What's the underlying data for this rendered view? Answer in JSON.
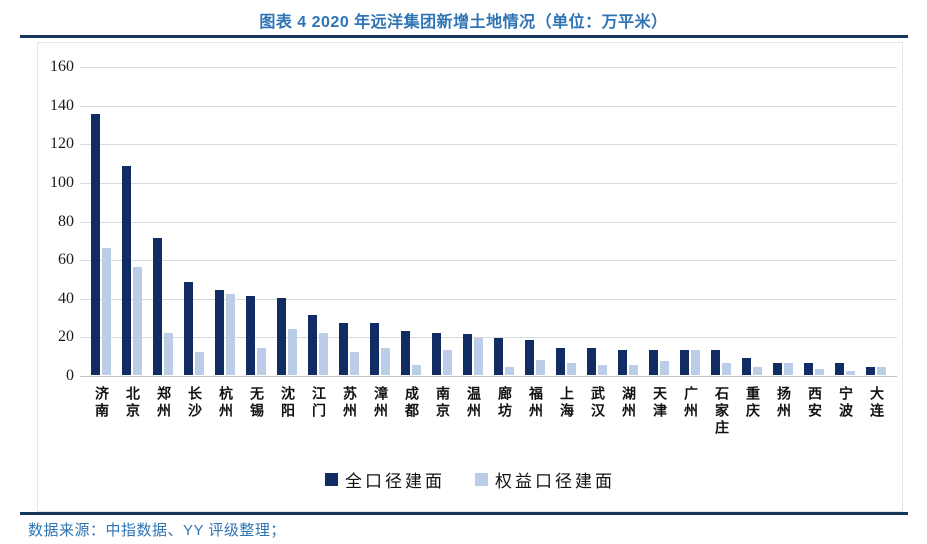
{
  "header": {
    "title": "图表 4 2020 年远洋集团新增土地情况（单位：万平米）"
  },
  "footer": {
    "source": "数据来源：中指数据、YY 评级整理；"
  },
  "colors": {
    "title_blue": "#2E74B5",
    "rule_navy": "#17365D",
    "bar_dark": "#102C63",
    "bar_light": "#BCCDE8",
    "gridline": "#D9D9D9"
  },
  "chart_data": {
    "type": "bar",
    "title": "图表 4 2020 年远洋集团新增土地情况（单位：万平米）",
    "xlabel": "",
    "ylabel": "",
    "ylim": [
      0,
      160
    ],
    "yticks": [
      0,
      20,
      40,
      60,
      80,
      100,
      120,
      140,
      160
    ],
    "grid": true,
    "legend_position": "bottom",
    "categories": [
      "济南",
      "北京",
      "郑州",
      "长沙",
      "杭州",
      "无锡",
      "沈阳",
      "江门",
      "苏州",
      "漳州",
      "成都",
      "南京",
      "温州",
      "廊坊",
      "福州",
      "上海",
      "武汉",
      "湖州",
      "天津",
      "广州",
      "石家庄",
      "重庆",
      "扬州",
      "西安",
      "宁波",
      "大连"
    ],
    "series": [
      {
        "name": "全口径建面",
        "color": "#102C63",
        "values": [
          135,
          108,
          71,
          48,
          44,
          41,
          40,
          31,
          27,
          27,
          23,
          22,
          21,
          19,
          18,
          14,
          14,
          13,
          13,
          13,
          13,
          9,
          6,
          6,
          6,
          4
        ]
      },
      {
        "name": "权益口径建面",
        "color": "#BCCDE8",
        "values": [
          66,
          56,
          22,
          12,
          42,
          14,
          24,
          22,
          12,
          14,
          5,
          13,
          19,
          4,
          8,
          6,
          5,
          5,
          7,
          13,
          6,
          4,
          6,
          3,
          2,
          4
        ]
      }
    ]
  }
}
